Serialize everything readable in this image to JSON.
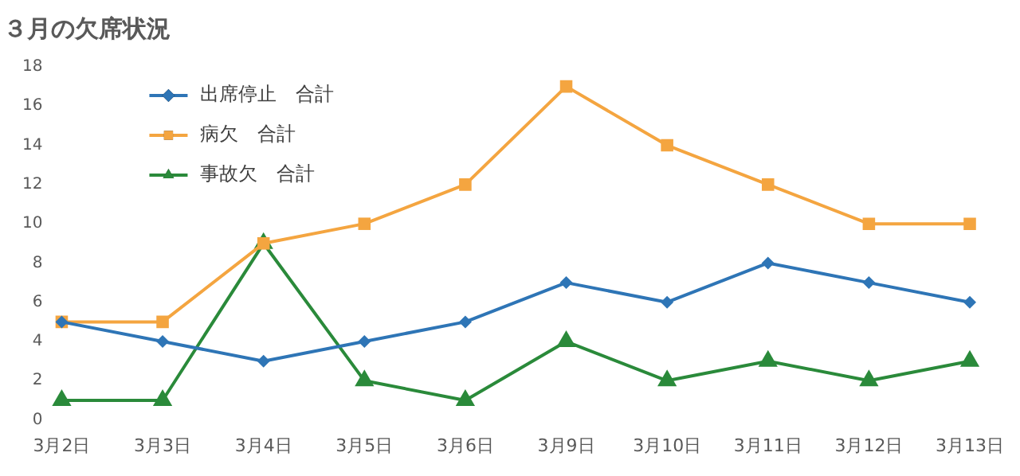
{
  "chart_data": {
    "type": "line",
    "title": "３月の欠席状況",
    "categories": [
      "3月2日",
      "3月3日",
      "3月4日",
      "3月5日",
      "3月6日",
      "3月9日",
      "3月10日",
      "3月11日",
      "3月12日",
      "3月13日"
    ],
    "series": [
      {
        "name": "出席停止　合計",
        "color": "#2e75b6",
        "marker": "diamond",
        "values": [
          5,
          4,
          3,
          4,
          5,
          7,
          6,
          8,
          7,
          6
        ]
      },
      {
        "name": "病欠　合計",
        "color": "#f4a540",
        "marker": "square",
        "values": [
          5,
          5,
          9,
          10,
          12,
          17,
          14,
          12,
          10,
          10
        ]
      },
      {
        "name": "事故欠　合計",
        "color": "#2a8a3a",
        "marker": "triangle",
        "values": [
          1,
          1,
          9,
          2,
          1,
          4,
          2,
          3,
          2,
          3
        ]
      }
    ],
    "ylim": [
      0,
      18
    ],
    "yticks": [
      0,
      2,
      4,
      6,
      8,
      10,
      12,
      14,
      16,
      18
    ],
    "grid": false,
    "legend": "top left",
    "line_style": "solid"
  }
}
